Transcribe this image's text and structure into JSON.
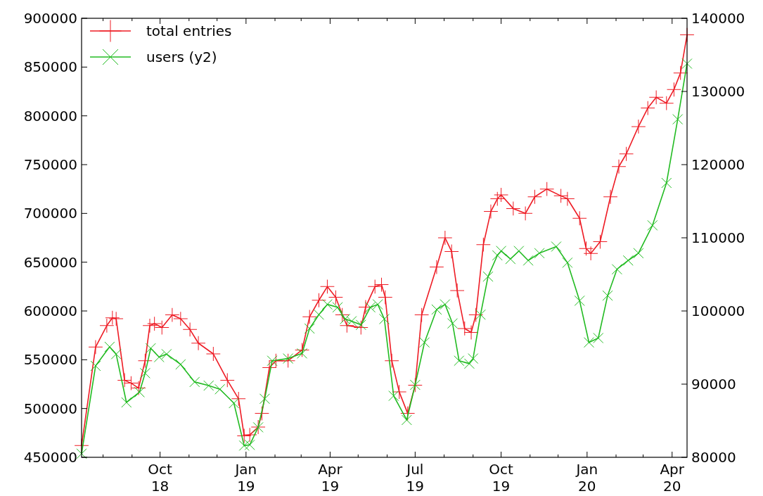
{
  "chart_data": {
    "type": "line",
    "xlim": [
      "2018-07-09",
      "2020-04-17"
    ],
    "xticks": [
      {
        "value": "2018-08-01",
        "label": null
      },
      {
        "value": "2018-09-01",
        "label": null
      },
      {
        "value": "2018-10-01",
        "label": "Oct\n18"
      },
      {
        "value": "2018-11-01",
        "label": null
      },
      {
        "value": "2018-12-01",
        "label": null
      },
      {
        "value": "2019-01-01",
        "label": "Jan\n19"
      },
      {
        "value": "2019-02-01",
        "label": null
      },
      {
        "value": "2019-03-01",
        "label": null
      },
      {
        "value": "2019-04-01",
        "label": "Apr\n19"
      },
      {
        "value": "2019-05-01",
        "label": null
      },
      {
        "value": "2019-06-01",
        "label": null
      },
      {
        "value": "2019-07-01",
        "label": "Jul\n19"
      },
      {
        "value": "2019-08-01",
        "label": null
      },
      {
        "value": "2019-09-01",
        "label": null
      },
      {
        "value": "2019-10-01",
        "label": "Oct\n19"
      },
      {
        "value": "2019-11-01",
        "label": null
      },
      {
        "value": "2019-12-01",
        "label": null
      },
      {
        "value": "2020-01-01",
        "label": "Jan\n20"
      },
      {
        "value": "2020-02-01",
        "label": null
      },
      {
        "value": "2020-03-01",
        "label": null
      },
      {
        "value": "2020-04-01",
        "label": "Apr\n20"
      }
    ],
    "ylim": [
      450000,
      900000
    ],
    "yticks": [
      450000,
      500000,
      550000,
      600000,
      650000,
      700000,
      750000,
      800000,
      850000,
      900000
    ],
    "y2lim": [
      80000,
      140000
    ],
    "y2ticks": [
      80000,
      90000,
      100000,
      110000,
      120000,
      130000,
      140000
    ],
    "legend": "top left",
    "grid": false,
    "series": [
      {
        "name": "total entries",
        "color": "#ee1c25",
        "marker": "cross",
        "x": [
          "2018-07-09",
          "2018-07-24",
          "2018-08-05",
          "2018-08-11",
          "2018-08-15",
          "2018-08-24",
          "2018-08-31",
          "2018-09-08",
          "2018-09-15",
          "2018-09-20",
          "2018-09-25",
          "2018-10-03",
          "2018-10-14",
          "2018-10-23",
          "2018-11-02",
          "2018-11-11",
          "2018-11-27",
          "2018-12-12",
          "2018-12-24",
          "2018-12-30",
          "2019-01-05",
          "2019-01-14",
          "2019-01-18",
          "2019-01-26",
          "2019-02-02",
          "2019-02-15",
          "2019-03-02",
          "2019-03-10",
          "2019-03-20",
          "2019-03-29",
          "2019-04-07",
          "2019-04-14",
          "2019-04-19",
          "2019-05-04",
          "2019-05-09",
          "2019-05-19",
          "2019-05-26",
          "2019-05-30",
          "2019-06-06",
          "2019-06-14",
          "2019-06-23",
          "2019-07-01",
          "2019-07-08",
          "2019-07-24",
          "2019-08-02",
          "2019-08-09",
          "2019-08-15",
          "2019-08-23",
          "2019-08-30",
          "2019-09-04",
          "2019-09-12",
          "2019-09-20",
          "2019-09-27",
          "2019-10-01",
          "2019-10-14",
          "2019-10-27",
          "2019-11-06",
          "2019-11-19",
          "2019-12-04",
          "2019-12-11",
          "2019-12-24",
          "2019-12-31",
          "2020-01-05",
          "2020-01-15",
          "2020-01-26",
          "2020-02-04",
          "2020-02-12",
          "2020-02-25",
          "2020-03-06",
          "2020-03-15",
          "2020-03-26",
          "2020-04-03",
          "2020-04-10",
          "2020-04-17"
        ],
        "values": [
          462000,
          563000,
          585000,
          593000,
          592000,
          529000,
          526000,
          521000,
          549000,
          585000,
          587000,
          583000,
          596000,
          592000,
          581000,
          567000,
          556000,
          529000,
          510000,
          472000,
          473000,
          481000,
          495000,
          542000,
          549000,
          549000,
          560000,
          594000,
          611000,
          625000,
          614000,
          596000,
          585000,
          583000,
          604000,
          625000,
          627000,
          614000,
          549000,
          517000,
          495000,
          524000,
          596000,
          645000,
          675000,
          661000,
          621000,
          582000,
          578000,
          596000,
          668000,
          702000,
          715000,
          719000,
          705000,
          700000,
          717000,
          725000,
          718000,
          715000,
          695000,
          664000,
          659000,
          671000,
          717000,
          748000,
          761000,
          789000,
          808000,
          819000,
          813000,
          827000,
          844000,
          883000
        ]
      },
      {
        "name": "users (y2)",
        "color": "#22bb22",
        "marker": "cross",
        "axis": "y2",
        "x": [
          "2018-07-09",
          "2018-07-24",
          "2018-08-08",
          "2018-08-15",
          "2018-08-26",
          "2018-09-09",
          "2018-09-15",
          "2018-09-21",
          "2018-09-30",
          "2018-10-08",
          "2018-10-23",
          "2018-11-07",
          "2018-11-22",
          "2018-12-04",
          "2018-12-19",
          "2018-12-30",
          "2019-01-05",
          "2019-01-14",
          "2019-01-21",
          "2019-01-29",
          "2019-02-15",
          "2019-03-02",
          "2019-03-10",
          "2019-03-20",
          "2019-03-29",
          "2019-04-09",
          "2019-04-17",
          "2019-04-24",
          "2019-05-04",
          "2019-05-14",
          "2019-05-22",
          "2019-05-29",
          "2019-06-08",
          "2019-06-22",
          "2019-07-01",
          "2019-07-11",
          "2019-07-24",
          "2019-08-02",
          "2019-08-10",
          "2019-08-17",
          "2019-08-28",
          "2019-09-01",
          "2019-09-09",
          "2019-09-17",
          "2019-09-27",
          "2019-10-01",
          "2019-10-11",
          "2019-10-20",
          "2019-10-30",
          "2019-11-11",
          "2019-11-29",
          "2019-12-11",
          "2019-12-24",
          "2020-01-03",
          "2020-01-13",
          "2020-01-23",
          "2020-02-02",
          "2020-02-14",
          "2020-02-25",
          "2020-03-11",
          "2020-03-26",
          "2020-04-07",
          "2020-04-17"
        ],
        "values": [
          80500,
          92500,
          95100,
          94100,
          87500,
          88900,
          91500,
          94900,
          93700,
          94100,
          92700,
          90300,
          89800,
          89300,
          87400,
          81600,
          81700,
          84100,
          88000,
          93200,
          93500,
          94200,
          97600,
          99500,
          100900,
          100500,
          98900,
          98600,
          98100,
          100500,
          100900,
          98900,
          88400,
          85100,
          89900,
          95700,
          100200,
          100900,
          98300,
          93200,
          92800,
          93500,
          99500,
          104700,
          107600,
          108200,
          107100,
          108200,
          106900,
          107900,
          108800,
          106600,
          101400,
          95700,
          96300,
          102100,
          105700,
          106900,
          107900,
          111700,
          117500,
          126200,
          133800
        ]
      }
    ]
  }
}
